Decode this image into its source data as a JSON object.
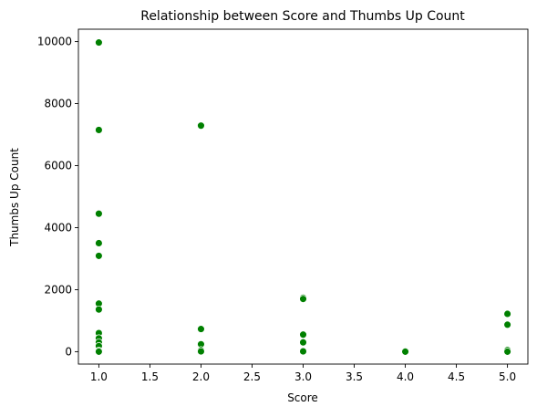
{
  "chart_data": {
    "type": "scatter",
    "title": "Relationship between Score and Thumbs Up Count",
    "xlabel": "Score",
    "ylabel": "Thumbs Up Count",
    "xlim": [
      0.8,
      5.2
    ],
    "ylim": [
      -400,
      10400
    ],
    "xticks": [
      1.0,
      1.5,
      2.0,
      2.5,
      3.0,
      3.5,
      4.0,
      4.5,
      5.0
    ],
    "xtick_labels": [
      "1.0",
      "1.5",
      "2.0",
      "2.5",
      "3.0",
      "3.5",
      "4.0",
      "4.5",
      "5.0"
    ],
    "yticks": [
      0,
      2000,
      4000,
      6000,
      8000,
      10000
    ],
    "ytick_labels": [
      "0",
      "2000",
      "4000",
      "6000",
      "8000",
      "10000"
    ],
    "grid": false,
    "marker_color": "#008000",
    "marker_edge_color": "#ffffff",
    "points": [
      {
        "x": 1.0,
        "y": 9970
      },
      {
        "x": 1.0,
        "y": 7150
      },
      {
        "x": 1.0,
        "y": 4450
      },
      {
        "x": 1.0,
        "y": 3500
      },
      {
        "x": 1.0,
        "y": 3090
      },
      {
        "x": 1.0,
        "y": 1550
      },
      {
        "x": 1.0,
        "y": 1360
      },
      {
        "x": 1.0,
        "y": 600
      },
      {
        "x": 1.0,
        "y": 430
      },
      {
        "x": 1.0,
        "y": 300
      },
      {
        "x": 1.0,
        "y": 180
      },
      {
        "x": 1.0,
        "y": 30
      },
      {
        "x": 1.0,
        "y": 0
      },
      {
        "x": 2.0,
        "y": 7290
      },
      {
        "x": 2.0,
        "y": 730
      },
      {
        "x": 2.0,
        "y": 240
      },
      {
        "x": 2.0,
        "y": 50
      },
      {
        "x": 2.0,
        "y": 10
      },
      {
        "x": 3.0,
        "y": 1740
      },
      {
        "x": 3.0,
        "y": 1700
      },
      {
        "x": 3.0,
        "y": 550
      },
      {
        "x": 3.0,
        "y": 300
      },
      {
        "x": 3.0,
        "y": 10
      },
      {
        "x": 4.0,
        "y": 20
      },
      {
        "x": 4.0,
        "y": 0
      },
      {
        "x": 5.0,
        "y": 1220
      },
      {
        "x": 5.0,
        "y": 870
      },
      {
        "x": 5.0,
        "y": 50
      },
      {
        "x": 5.0,
        "y": 0
      }
    ]
  }
}
